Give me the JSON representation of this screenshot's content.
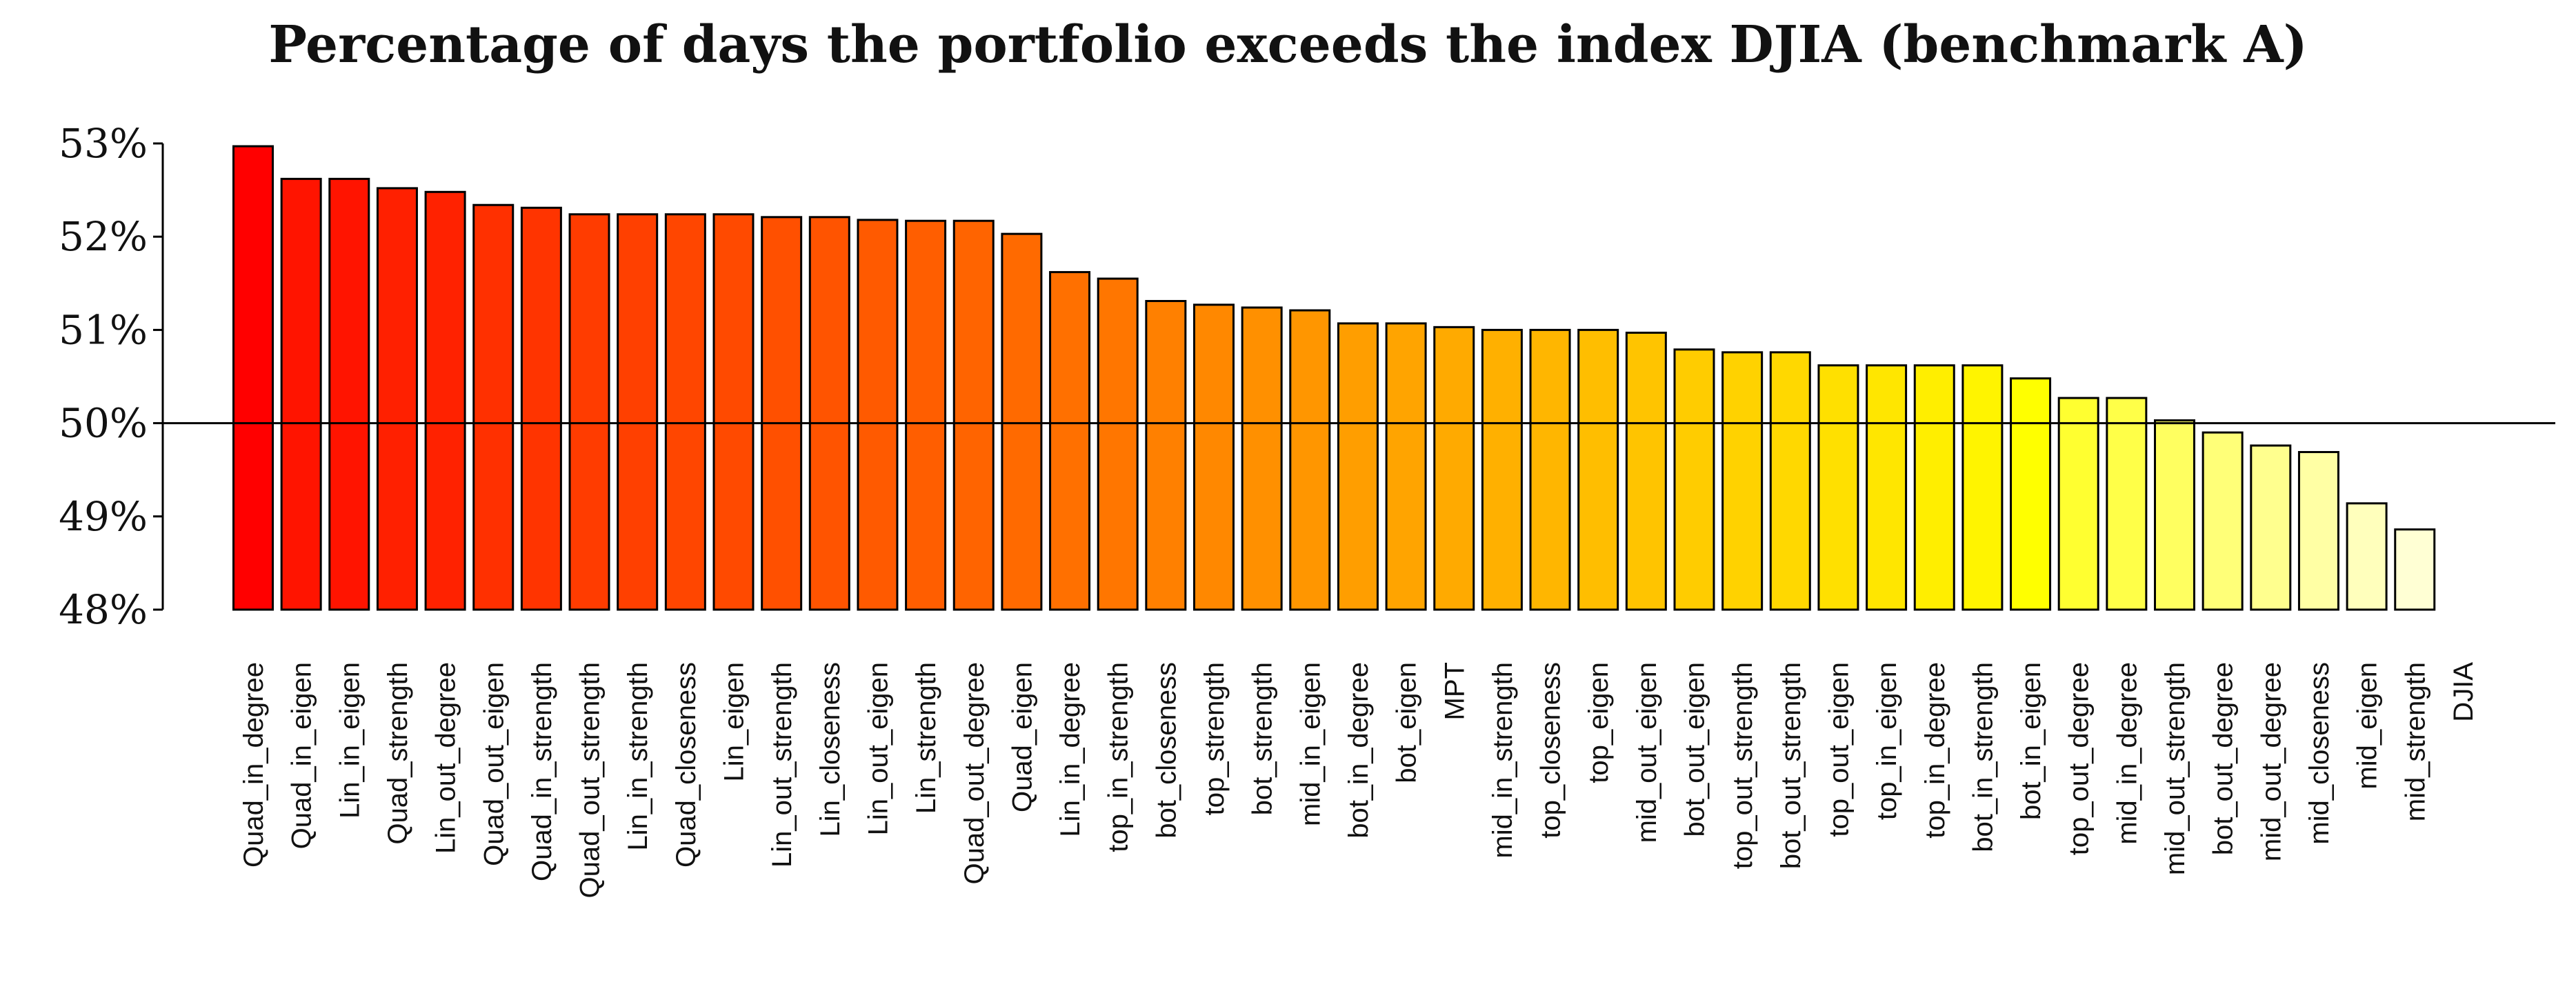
{
  "chart_data": {
    "type": "bar",
    "title": "Percentage of days the portfolio exceeds the index DJIA (benchmark A)",
    "xlabel": "",
    "ylabel": "",
    "ylim": [
      48,
      53
    ],
    "yticks": [
      48,
      49,
      50,
      51,
      52,
      53
    ],
    "ytick_labels": [
      "48%",
      "49%",
      "50%",
      "51%",
      "52%",
      "53%"
    ],
    "reference_line": 50,
    "categories": [
      "Quad_in_degree",
      "Quad_in_eigen",
      "Lin_in_eigen",
      "Quad_strength",
      "Lin_out_degree",
      "Quad_out_eigen",
      "Quad_in_strength",
      "Quad_out_strength",
      "Lin_in_strength",
      "Quad_closeness",
      "Lin_eigen",
      "Lin_out_strength",
      "Lin_closeness",
      "Lin_out_eigen",
      "Lin_strength",
      "Quad_out_degree",
      "Quad_eigen",
      "Lin_in_degree",
      "top_in_strength",
      "bot_closeness",
      "top_strength",
      "bot_strength",
      "mid_in_eigen",
      "bot_in_degree",
      "bot_eigen",
      "MPT",
      "mid_in_strength",
      "top_closeness",
      "top_eigen",
      "mid_out_eigen",
      "bot_out_eigen",
      "top_out_strength",
      "bot_out_strength",
      "top_out_eigen",
      "top_in_eigen",
      "top_in_degree",
      "bot_in_strength",
      "bot_in_eigen",
      "top_out_degree",
      "mid_in_degree",
      "mid_out_strength",
      "bot_out_degree",
      "mid_out_degree",
      "mid_closeness",
      "mid_eigen",
      "mid_strength",
      "DJIA"
    ],
    "values": [
      52.97,
      52.62,
      52.62,
      52.52,
      52.48,
      52.34,
      52.31,
      52.24,
      52.24,
      52.24,
      52.24,
      52.21,
      52.21,
      52.18,
      52.17,
      52.17,
      52.03,
      51.62,
      51.55,
      51.31,
      51.27,
      51.24,
      51.21,
      51.07,
      51.07,
      51.03,
      51.0,
      51.0,
      51.0,
      50.97,
      50.79,
      50.76,
      50.76,
      50.62,
      50.62,
      50.62,
      50.62,
      50.48,
      50.27,
      50.27,
      50.03,
      49.9,
      49.76,
      49.69,
      49.14,
      48.86,
      null
    ],
    "bar_colors": [
      "#ff0000",
      "#ff1400",
      "#ff1400",
      "#ff2000",
      "#ff2200",
      "#ff3000",
      "#ff3400",
      "#ff3c00",
      "#ff4000",
      "#ff4600",
      "#ff4a00",
      "#ff5000",
      "#ff5400",
      "#ff5a00",
      "#ff5e00",
      "#ff6400",
      "#ff6a00",
      "#ff7000",
      "#ff7600",
      "#ff8000",
      "#ff8800",
      "#ff9000",
      "#ff9600",
      "#ff9e00",
      "#ffa400",
      "#ffaa00",
      "#ffb000",
      "#ffb600",
      "#ffbe00",
      "#ffc400",
      "#ffcc00",
      "#ffd200",
      "#ffd800",
      "#ffe000",
      "#ffe600",
      "#ffee00",
      "#fff400",
      "#ffff00",
      "#ffff30",
      "#ffff48",
      "#ffff60",
      "#ffff78",
      "#ffff8e",
      "#ffffa4",
      "#ffffbc",
      "#ffffd4",
      "#ffffff"
    ]
  }
}
